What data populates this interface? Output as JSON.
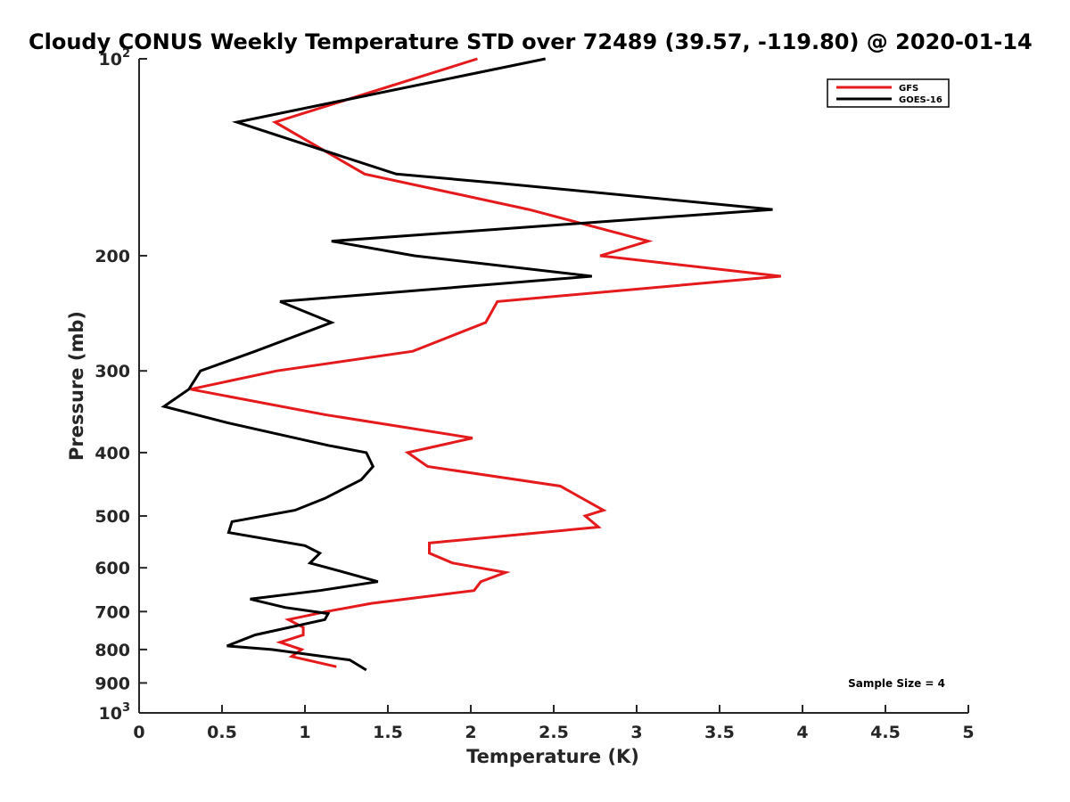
{
  "chart_data": {
    "type": "line",
    "title": "Cloudy CONUS Weekly Temperature STD over 72489 (39.57, -119.80) @ 2020-01-14",
    "xlabel": "Temperature (K)",
    "ylabel": "Pressure (mb)",
    "xlim": [
      0,
      5
    ],
    "ylim": [
      100,
      1000
    ],
    "y_scale": "log",
    "y_reversed": true,
    "grid": false,
    "legend_position": "top-right",
    "x_ticks": [
      {
        "value": 0,
        "label": "0"
      },
      {
        "value": 0.5,
        "label": "0.5"
      },
      {
        "value": 1,
        "label": "1"
      },
      {
        "value": 1.5,
        "label": "1.5"
      },
      {
        "value": 2,
        "label": "2"
      },
      {
        "value": 2.5,
        "label": "2.5"
      },
      {
        "value": 3,
        "label": "3"
      },
      {
        "value": 3.5,
        "label": "3.5"
      },
      {
        "value": 4,
        "label": "4"
      },
      {
        "value": 4.5,
        "label": "4.5"
      },
      {
        "value": 5,
        "label": "5"
      }
    ],
    "y_ticks": [
      {
        "value": 100,
        "label": "10",
        "sup": "2"
      },
      {
        "value": 200,
        "label": "200"
      },
      {
        "value": 300,
        "label": "300"
      },
      {
        "value": 400,
        "label": "400"
      },
      {
        "value": 500,
        "label": "500"
      },
      {
        "value": 600,
        "label": "600"
      },
      {
        "value": 700,
        "label": "700"
      },
      {
        "value": 800,
        "label": "800"
      },
      {
        "value": 900,
        "label": "900"
      },
      {
        "value": 1000,
        "label": "10",
        "sup": "3"
      }
    ],
    "series": [
      {
        "name": "GFS",
        "color": "#e41a1c",
        "points": [
          [
            2.04,
            100
          ],
          [
            0.82,
            125
          ],
          [
            1.36,
            150
          ],
          [
            2.35,
            170
          ],
          [
            3.07,
            190
          ],
          [
            2.78,
            200
          ],
          [
            3.87,
            215
          ],
          [
            2.16,
            235
          ],
          [
            2.09,
            253
          ],
          [
            1.65,
            280
          ],
          [
            0.83,
            300
          ],
          [
            0.31,
            320
          ],
          [
            1.12,
            350
          ],
          [
            2.01,
            380
          ],
          [
            1.62,
            400
          ],
          [
            1.74,
            420
          ],
          [
            2.54,
            450
          ],
          [
            2.8,
            490
          ],
          [
            2.69,
            500
          ],
          [
            2.77,
            520
          ],
          [
            1.75,
            550
          ],
          [
            1.75,
            570
          ],
          [
            1.89,
            590
          ],
          [
            2.21,
            610
          ],
          [
            2.06,
            630
          ],
          [
            2.02,
            650
          ],
          [
            1.4,
            680
          ],
          [
            1.13,
            700
          ],
          [
            0.9,
            720
          ],
          [
            0.99,
            740
          ],
          [
            0.99,
            760
          ],
          [
            0.85,
            780
          ],
          [
            0.98,
            800
          ],
          [
            0.92,
            820
          ],
          [
            1.19,
            850
          ]
        ]
      },
      {
        "name": "GOES-16",
        "color": "#000000",
        "points": [
          [
            2.45,
            100
          ],
          [
            0.59,
            125
          ],
          [
            1.55,
            150
          ],
          [
            2.18,
            155
          ],
          [
            3.82,
            170
          ],
          [
            1.16,
            190
          ],
          [
            1.66,
            200
          ],
          [
            2.73,
            215
          ],
          [
            0.85,
            235
          ],
          [
            1.16,
            253
          ],
          [
            0.7,
            280
          ],
          [
            0.37,
            300
          ],
          [
            0.3,
            320
          ],
          [
            0.15,
            340
          ],
          [
            0.53,
            360
          ],
          [
            1.14,
            390
          ],
          [
            1.37,
            400
          ],
          [
            1.41,
            420
          ],
          [
            1.34,
            440
          ],
          [
            1.12,
            470
          ],
          [
            0.94,
            490
          ],
          [
            0.56,
            510
          ],
          [
            0.54,
            530
          ],
          [
            1.0,
            555
          ],
          [
            1.09,
            570
          ],
          [
            1.03,
            590
          ],
          [
            1.19,
            605
          ],
          [
            1.44,
            630
          ],
          [
            1.09,
            650
          ],
          [
            0.67,
            670
          ],
          [
            0.88,
            690
          ],
          [
            1.14,
            705
          ],
          [
            1.12,
            720
          ],
          [
            0.7,
            760
          ],
          [
            0.53,
            790
          ],
          [
            0.8,
            800
          ],
          [
            1.27,
            830
          ],
          [
            1.37,
            860
          ]
        ]
      }
    ],
    "annotations": [
      {
        "text": "Sample Size = 4"
      }
    ]
  }
}
